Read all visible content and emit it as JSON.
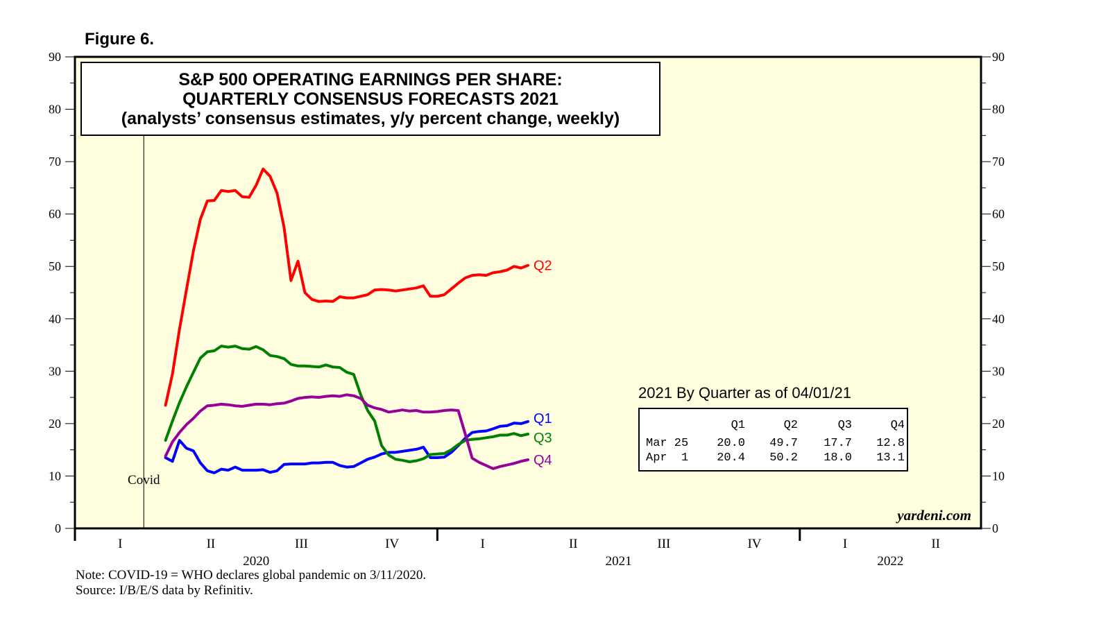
{
  "figure_label": "Figure 6.",
  "chart_data": {
    "type": "line",
    "title_lines": [
      "S&P 500 OPERATING EARNINGS PER SHARE:",
      "QUARTERLY CONSENSUS FORECASTS 2021",
      "(analysts’ consensus estimates, y/y percent change, weekly)"
    ],
    "ylim": [
      0,
      90
    ],
    "yticks": [
      "0",
      "10",
      "20",
      "30",
      "40",
      "50",
      "60",
      "70",
      "80",
      "90"
    ],
    "xlim": [
      2020.0,
      2022.5
    ],
    "quarter_ticks": [
      {
        "label": "I",
        "x": 2020.125
      },
      {
        "label": "II",
        "x": 2020.375
      },
      {
        "label": "III",
        "x": 2020.625
      },
      {
        "label": "IV",
        "x": 2020.875
      },
      {
        "label": "I",
        "x": 2021.125
      },
      {
        "label": "II",
        "x": 2021.375
      },
      {
        "label": "III",
        "x": 2021.625
      },
      {
        "label": "IV",
        "x": 2021.875
      },
      {
        "label": "I",
        "x": 2022.125
      },
      {
        "label": "II",
        "x": 2022.375
      }
    ],
    "year_ticks": [
      2021.0,
      2022.0
    ],
    "year_labels": [
      {
        "label": "2020",
        "x": 2020.5
      },
      {
        "label": "2021",
        "x": 2021.5
      },
      {
        "label": "2022",
        "x": 2022.25
      }
    ],
    "event": {
      "label": "Covid",
      "x": 2020.19
    },
    "series": [
      {
        "name": "Q2",
        "color": "#ff0000",
        "x0": 2020.25,
        "step": 0.01923,
        "values": [
          23.5,
          29.5,
          38,
          45.5,
          53,
          59,
          62.5,
          62.6,
          64.5,
          64.3,
          64.5,
          63.3,
          63.2,
          65.5,
          68.6,
          67.2,
          64,
          57.5,
          47.3,
          51,
          45,
          43.7,
          43.3,
          43.4,
          43.3,
          44.2,
          44,
          44,
          44.3,
          44.6,
          45.5,
          45.6,
          45.5,
          45.3,
          45.5,
          45.7,
          45.9,
          46.3,
          44.3,
          44.3,
          44.6,
          45.7,
          46.8,
          47.8,
          48.3,
          48.4,
          48.3,
          48.8,
          49,
          49.3,
          50,
          49.7,
          50.2
        ]
      },
      {
        "name": "Q1",
        "color": "#0000ff",
        "x0": 2020.25,
        "step": 0.01923,
        "values": [
          13.5,
          12.8,
          16.8,
          15.3,
          14.8,
          12.5,
          11,
          10.6,
          11.3,
          11.1,
          11.7,
          11.1,
          11.1,
          11.1,
          11.2,
          10.7,
          11,
          12.2,
          12.3,
          12.3,
          12.3,
          12.5,
          12.5,
          12.6,
          12.6,
          12,
          11.7,
          11.8,
          12.5,
          13.2,
          13.6,
          14.2,
          14.5,
          14.5,
          14.7,
          14.9,
          15.1,
          15.5,
          13.5,
          13.5,
          13.6,
          14.5,
          15.8,
          17.2,
          18.3,
          18.5,
          18.6,
          19,
          19.5,
          19.6,
          20.1,
          20,
          20.4
        ]
      },
      {
        "name": "Q3",
        "color": "#008000",
        "x0": 2020.25,
        "step": 0.01923,
        "values": [
          16.8,
          20.5,
          24,
          27,
          29.8,
          32.5,
          33.7,
          33.9,
          34.8,
          34.6,
          34.8,
          34.3,
          34.2,
          34.7,
          34.1,
          33,
          32.8,
          32.4,
          31.3,
          31,
          31,
          30.9,
          30.8,
          31.2,
          30.8,
          30.7,
          29.8,
          29.4,
          25.5,
          22.5,
          20.5,
          15.8,
          14,
          13.2,
          13,
          12.7,
          12.9,
          13.3,
          14.1,
          14.2,
          14.3,
          15,
          16,
          16.8,
          17,
          17.1,
          17.3,
          17.5,
          17.8,
          17.8,
          18.1,
          17.7,
          18
        ]
      },
      {
        "name": "Q4",
        "color": "#990099",
        "x0": 2020.25,
        "step": 0.01923,
        "values": [
          13.8,
          16.5,
          18.3,
          19.8,
          21,
          22.4,
          23.4,
          23.5,
          23.7,
          23.6,
          23.4,
          23.3,
          23.5,
          23.7,
          23.7,
          23.6,
          23.8,
          23.9,
          24.3,
          24.8,
          25,
          25.1,
          25,
          25.2,
          25.3,
          25.2,
          25.5,
          25.3,
          24.8,
          23.5,
          23,
          22.7,
          22.2,
          22.4,
          22.6,
          22.4,
          22.5,
          22.2,
          22.2,
          22.3,
          22.5,
          22.6,
          22.5,
          18,
          13.4,
          12.6,
          12,
          11.4,
          11.8,
          12.1,
          12.4,
          12.8,
          13.1
        ]
      }
    ],
    "table": {
      "title": "2021 By Quarter as of 04/01/21",
      "headers": [
        "Q1",
        "Q2",
        "Q3",
        "Q4"
      ],
      "rows": [
        {
          "label": "Mar 25",
          "values": [
            "20.0",
            "49.7",
            "17.7",
            "12.8"
          ]
        },
        {
          "label": "Apr  1",
          "values": [
            "20.4",
            "50.2",
            "18.0",
            "13.1"
          ]
        }
      ]
    }
  },
  "watermark": "yardeni.com",
  "notes": [
    "Note: COVID-19 = WHO declares global pandemic on 3/11/2020.",
    "Source: I/B/E/S data by Refinitiv."
  ],
  "colors": {
    "plot_bg": "#ffffe0",
    "frame": "#000000"
  }
}
